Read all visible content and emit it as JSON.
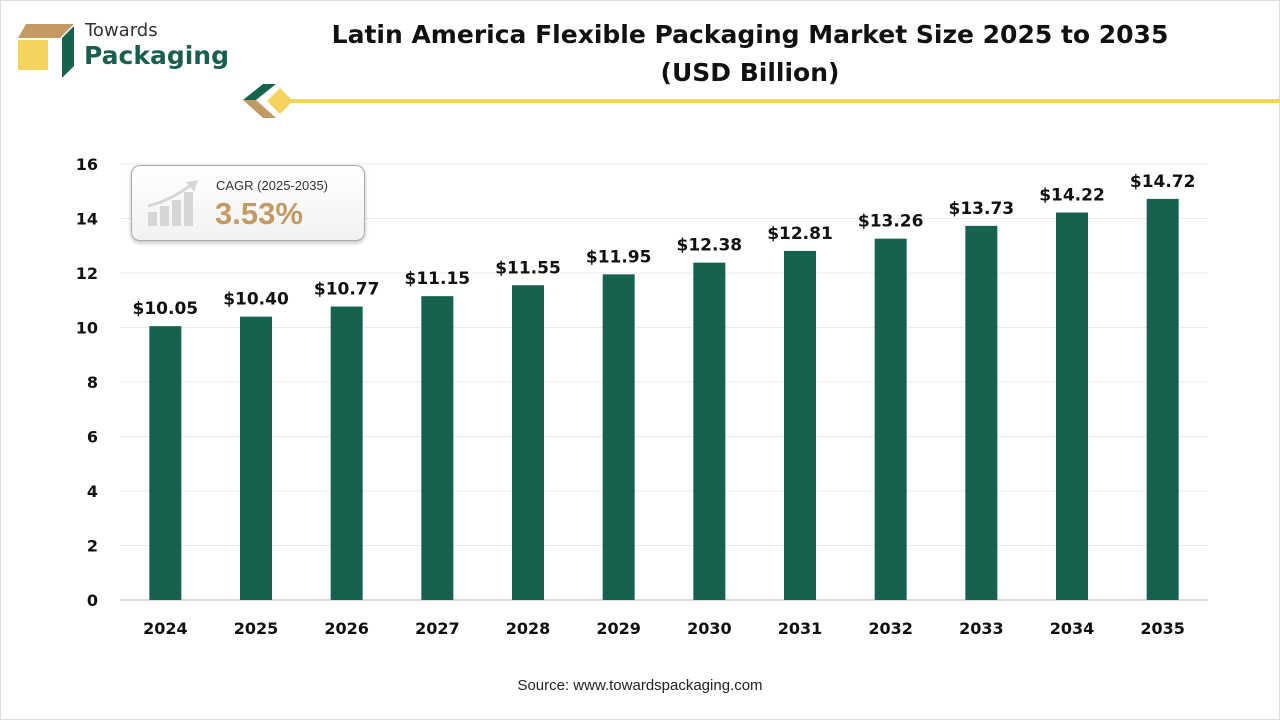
{
  "header": {
    "logo_line1": "Towards",
    "logo_line2": "Packaging",
    "title_line1": "Latin America Flexible Packaging Market Size 2025 to 2035",
    "title_line2": "(USD Billion)"
  },
  "cagr": {
    "label": "CAGR (2025-2035)",
    "value": "3.53%",
    "icon": "growth-chart-icon"
  },
  "source": "Source: www.towardspackaging.com",
  "colors": {
    "bar": "#17614f",
    "accent_yellow": "#f3d35d",
    "accent_tan": "#c49a64"
  },
  "chart_data": {
    "type": "bar",
    "title": "Latin America Flexible Packaging Market Size 2025 to 2035 (USD Billion)",
    "categories": [
      "2024",
      "2025",
      "2026",
      "2027",
      "2028",
      "2029",
      "2030",
      "2031",
      "2032",
      "2033",
      "2034",
      "2035"
    ],
    "values": [
      10.05,
      10.4,
      10.77,
      11.15,
      11.55,
      11.95,
      12.38,
      12.81,
      13.26,
      13.73,
      14.22,
      14.72
    ],
    "data_labels": [
      "$10.05",
      "$10.40",
      "$10.77",
      "$11.15",
      "$11.55",
      "$11.95",
      "$12.38",
      "$12.81",
      "$13.26",
      "$13.73",
      "$14.22",
      "$14.72"
    ],
    "yticks": [
      0,
      2,
      4,
      6,
      8,
      10,
      12,
      14,
      16
    ],
    "ylim": [
      0,
      16
    ],
    "xlabel": "",
    "ylabel": "",
    "grid": true,
    "legend": "none"
  }
}
